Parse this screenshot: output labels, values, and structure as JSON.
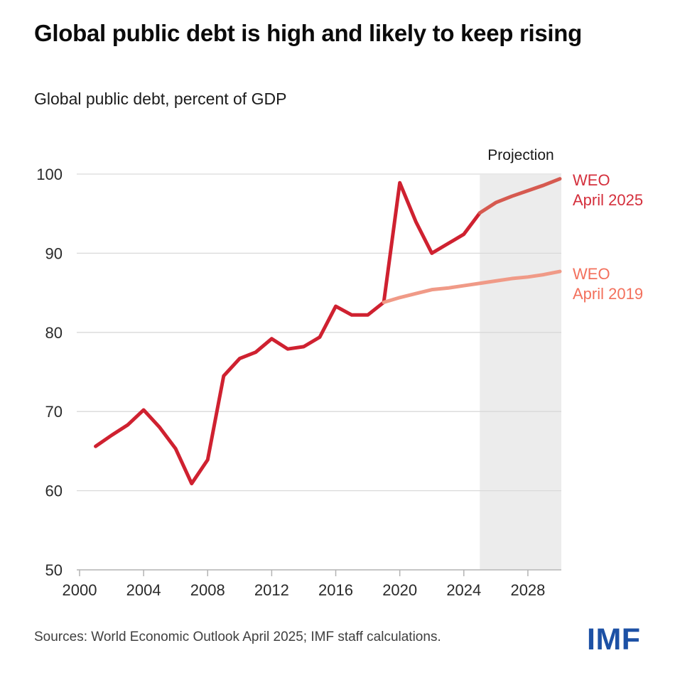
{
  "page": {
    "footer": {
      "source": "Sources: World Economic Outlook April 2025; IMF staff calculations.",
      "logo_text": "IMF",
      "logo_color": "#1d51a5"
    }
  },
  "chart_data": {
    "type": "line",
    "title": "Global public debt is high and likely to keep rising",
    "subtitle": "Global public debt, percent of GDP",
    "xlabel": "",
    "ylabel": "percent of GDP",
    "xlim": [
      2000,
      2030
    ],
    "ylim": [
      50,
      100
    ],
    "yticks": [
      50,
      60,
      70,
      80,
      90,
      100
    ],
    "xticks": [
      2000,
      2004,
      2008,
      2012,
      2016,
      2020,
      2024,
      2028
    ],
    "grid": "horizontal",
    "legend_position": "right-of-line-ends",
    "projection": {
      "label": "Projection",
      "start": 2025,
      "end": 2030,
      "fill": "#ececec"
    },
    "colors": {
      "gridline": "#d9d9d9",
      "axis": "#b3b3b3",
      "tick_label": "#2a2a2a"
    },
    "series": [
      {
        "name": "WEO April 2025",
        "label_lines": [
          "WEO",
          "April 2025"
        ],
        "color": "#cf2130",
        "projection_color": "#d65a50",
        "label_color": "#d42f3c",
        "x": [
          2001,
          2002,
          2003,
          2004,
          2005,
          2006,
          2007,
          2008,
          2009,
          2010,
          2011,
          2012,
          2013,
          2014,
          2015,
          2016,
          2017,
          2018,
          2019,
          2020,
          2021,
          2022,
          2023,
          2024,
          2025,
          2026,
          2027,
          2028,
          2029,
          2030
        ],
        "values": [
          65.6,
          67.0,
          68.3,
          70.2,
          68.0,
          65.3,
          60.9,
          63.9,
          74.5,
          76.7,
          77.5,
          79.2,
          77.9,
          78.2,
          79.4,
          83.3,
          82.2,
          82.2,
          83.8,
          98.9,
          94.0,
          90.0,
          91.2,
          92.4,
          95.1,
          96.4,
          97.2,
          97.9,
          98.6,
          99.4
        ]
      },
      {
        "name": "WEO April 2019",
        "label_lines": [
          "WEO",
          "April 2019"
        ],
        "color": "#f09a87",
        "label_color": "#f3705c",
        "x": [
          2019,
          2020,
          2021,
          2022,
          2023,
          2024,
          2025,
          2026,
          2027,
          2028,
          2029,
          2030
        ],
        "values": [
          83.8,
          84.4,
          84.9,
          85.4,
          85.6,
          85.9,
          86.2,
          86.5,
          86.8,
          87.0,
          87.3,
          87.7
        ]
      }
    ],
    "source": "Sources: World Economic Outlook April 2025; IMF staff calculations."
  }
}
